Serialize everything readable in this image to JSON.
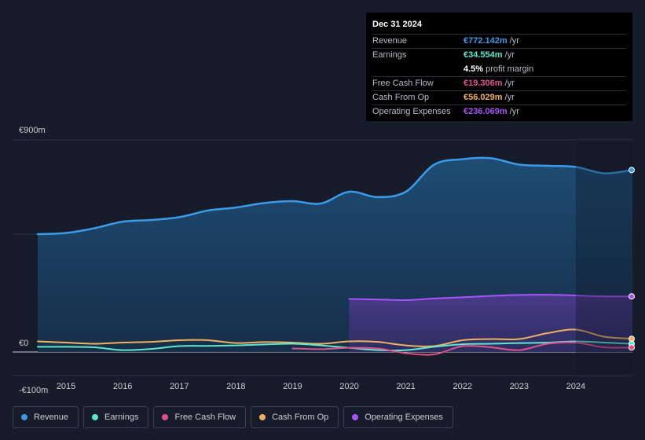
{
  "tooltip": {
    "date": "Dec 31 2024",
    "rows": [
      {
        "label": "Revenue",
        "value": "€772.142m",
        "unit": "/yr",
        "color": "#3b9be8"
      },
      {
        "label": "Earnings",
        "value": "€34.554m",
        "unit": "/yr",
        "color": "#5ee6cf"
      },
      {
        "label": "",
        "value": "4.5%",
        "unit": "profit margin",
        "color": "#ffffff"
      },
      {
        "label": "Free Cash Flow",
        "value": "€19.306m",
        "unit": "/yr",
        "color": "#e0508c"
      },
      {
        "label": "Cash From Op",
        "value": "€56.029m",
        "unit": "/yr",
        "color": "#f0b060"
      },
      {
        "label": "Operating Expenses",
        "value": "€236.069m",
        "unit": "/yr",
        "color": "#a855f7"
      }
    ]
  },
  "legend": [
    {
      "label": "Revenue",
      "color": "#3b9be8"
    },
    {
      "label": "Earnings",
      "color": "#5ee6cf"
    },
    {
      "label": "Free Cash Flow",
      "color": "#e0508c"
    },
    {
      "label": "Cash From Op",
      "color": "#f0b060"
    },
    {
      "label": "Operating Expenses",
      "color": "#a855f7"
    }
  ],
  "chart_data": {
    "type": "area",
    "title": "",
    "xlabel": "",
    "ylabel": "",
    "y_labels": [
      "€900m",
      "€0",
      "-€100m"
    ],
    "ylim": [
      -100,
      900
    ],
    "xlim": [
      2014.5,
      2025.0
    ],
    "x_ticks": [
      2015,
      2016,
      2017,
      2018,
      2019,
      2020,
      2021,
      2022,
      2023,
      2024
    ],
    "x_tick_labels": [
      "2015",
      "2016",
      "2017",
      "2018",
      "2019",
      "2020",
      "2021",
      "2022",
      "2023",
      "2024"
    ],
    "forecast_start": 2024.0,
    "series": [
      {
        "name": "Revenue",
        "color": "#3b9be8",
        "fill": true,
        "points": [
          [
            2014.5,
            500
          ],
          [
            2015.0,
            505
          ],
          [
            2015.5,
            525
          ],
          [
            2016.0,
            553
          ],
          [
            2016.5,
            560
          ],
          [
            2017.0,
            572
          ],
          [
            2017.5,
            600
          ],
          [
            2018.0,
            613
          ],
          [
            2018.5,
            632
          ],
          [
            2019.0,
            640
          ],
          [
            2019.5,
            630
          ],
          [
            2020.0,
            680
          ],
          [
            2020.5,
            657
          ],
          [
            2021.0,
            680
          ],
          [
            2021.5,
            795
          ],
          [
            2022.0,
            818
          ],
          [
            2022.5,
            822
          ],
          [
            2023.0,
            795
          ],
          [
            2023.5,
            790
          ],
          [
            2024.0,
            785
          ],
          [
            2024.5,
            758
          ],
          [
            2025.0,
            772
          ]
        ]
      },
      {
        "name": "Operating Expenses",
        "color": "#a855f7",
        "fill": true,
        "points": [
          [
            2020.0,
            225
          ],
          [
            2020.5,
            223
          ],
          [
            2021.0,
            220
          ],
          [
            2021.5,
            227
          ],
          [
            2022.0,
            232
          ],
          [
            2022.5,
            238
          ],
          [
            2023.0,
            242
          ],
          [
            2023.5,
            243
          ],
          [
            2024.0,
            240
          ],
          [
            2024.5,
            236
          ],
          [
            2025.0,
            236
          ]
        ]
      },
      {
        "name": "Cash From Op",
        "color": "#f0b060",
        "fill": false,
        "points": [
          [
            2014.5,
            45
          ],
          [
            2015.0,
            40
          ],
          [
            2015.5,
            35
          ],
          [
            2016.0,
            40
          ],
          [
            2016.5,
            43
          ],
          [
            2017.0,
            50
          ],
          [
            2017.5,
            50
          ],
          [
            2018.0,
            38
          ],
          [
            2018.5,
            42
          ],
          [
            2019.0,
            40
          ],
          [
            2019.5,
            35
          ],
          [
            2020.0,
            45
          ],
          [
            2020.5,
            43
          ],
          [
            2021.0,
            28
          ],
          [
            2021.5,
            25
          ],
          [
            2022.0,
            50
          ],
          [
            2022.5,
            55
          ],
          [
            2023.0,
            55
          ],
          [
            2023.5,
            80
          ],
          [
            2024.0,
            95
          ],
          [
            2024.5,
            65
          ],
          [
            2025.0,
            56
          ]
        ]
      },
      {
        "name": "Earnings",
        "color": "#5ee6cf",
        "fill": false,
        "points": [
          [
            2014.5,
            22
          ],
          [
            2015.0,
            22
          ],
          [
            2015.5,
            20
          ],
          [
            2016.0,
            8
          ],
          [
            2016.5,
            13
          ],
          [
            2017.0,
            25
          ],
          [
            2017.5,
            26
          ],
          [
            2018.0,
            28
          ],
          [
            2018.5,
            32
          ],
          [
            2019.0,
            35
          ],
          [
            2019.5,
            28
          ],
          [
            2020.0,
            18
          ],
          [
            2020.5,
            8
          ],
          [
            2021.0,
            8
          ],
          [
            2021.5,
            22
          ],
          [
            2022.0,
            33
          ],
          [
            2022.5,
            35
          ],
          [
            2023.0,
            38
          ],
          [
            2023.5,
            40
          ],
          [
            2024.0,
            45
          ],
          [
            2024.5,
            40
          ],
          [
            2025.0,
            35
          ]
        ]
      },
      {
        "name": "Free Cash Flow",
        "color": "#e0508c",
        "fill": false,
        "points": [
          [
            2019.0,
            15
          ],
          [
            2019.5,
            12
          ],
          [
            2020.0,
            18
          ],
          [
            2020.5,
            15
          ],
          [
            2021.0,
            -5
          ],
          [
            2021.5,
            -10
          ],
          [
            2022.0,
            25
          ],
          [
            2022.5,
            20
          ],
          [
            2023.0,
            8
          ],
          [
            2023.5,
            35
          ],
          [
            2024.0,
            40
          ],
          [
            2024.5,
            20
          ],
          [
            2025.0,
            19
          ]
        ]
      }
    ]
  }
}
